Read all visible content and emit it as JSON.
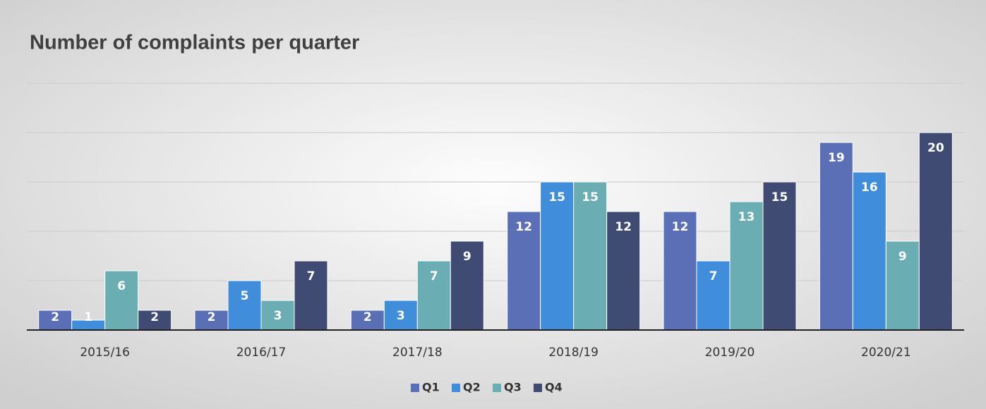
{
  "chart_data": {
    "type": "bar",
    "title": "Number of complaints per quarter",
    "categories": [
      "2015/16",
      "2016/17",
      "2017/18",
      "2018/19",
      "2019/20",
      "2020/21"
    ],
    "series": [
      {
        "name": "Q1",
        "color": "#5b6fb6",
        "values": [
          2,
          2,
          2,
          12,
          12,
          19
        ]
      },
      {
        "name": "Q2",
        "color": "#3f8ddb",
        "values": [
          1,
          5,
          3,
          15,
          7,
          16
        ]
      },
      {
        "name": "Q3",
        "color": "#6aadb2",
        "values": [
          6,
          3,
          7,
          15,
          13,
          9
        ]
      },
      {
        "name": "Q4",
        "color": "#3f4b73",
        "values": [
          2,
          7,
          9,
          12,
          15,
          20
        ]
      }
    ],
    "ylim": [
      0,
      25
    ],
    "yticks": [
      0,
      5,
      10,
      15,
      20,
      25
    ],
    "grid": true,
    "legend": "bottom"
  }
}
